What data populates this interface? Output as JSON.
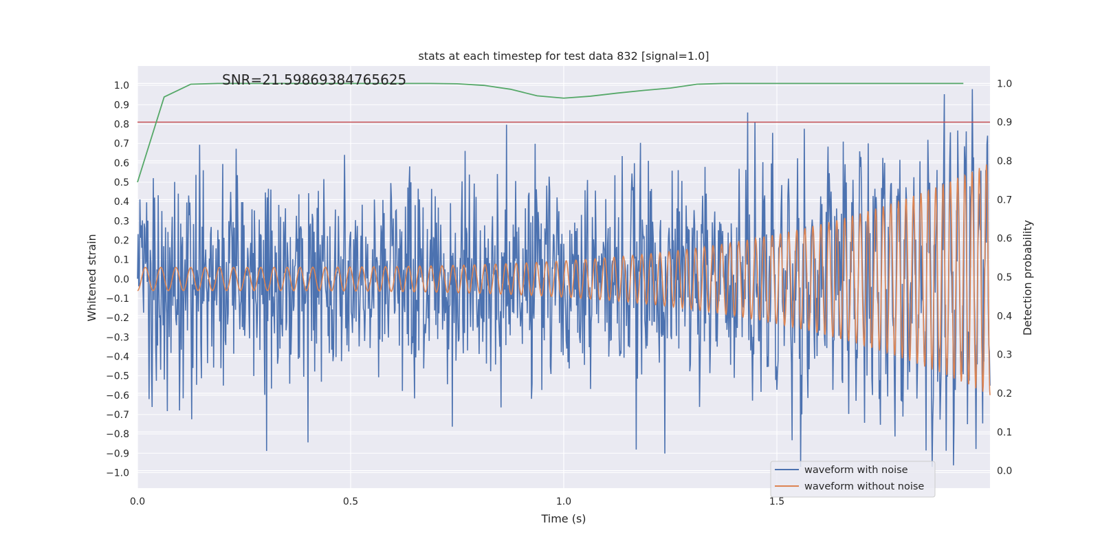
{
  "chart_data": {
    "type": "line",
    "title": "stats at each timestep for test data 832 [signal=1.0]",
    "xlabel": "Time (s)",
    "ylabel": "Whitened strain",
    "y2label": "Detection probability",
    "annotation": "SNR=21.59869384765625",
    "xlim": [
      0.0,
      2.0
    ],
    "ylim": [
      -1.08,
      1.1
    ],
    "y2lim": [
      -0.045,
      1.045
    ],
    "xticks": [
      0.0,
      0.5,
      1.0,
      1.5
    ],
    "xtick_labels": [
      "0.0",
      "0.5",
      "1.0",
      "1.5"
    ],
    "yticks": [
      -1.0,
      -0.9,
      -0.8,
      -0.7,
      -0.6,
      -0.5,
      -0.4,
      -0.3,
      -0.2,
      -0.1,
      0.0,
      0.1,
      0.2,
      0.3,
      0.4,
      0.5,
      0.6,
      0.7,
      0.8,
      0.9,
      1.0
    ],
    "ytick_labels": [
      "−1.0",
      "−0.9",
      "−0.8",
      "−0.7",
      "−0.6",
      "−0.5",
      "−0.4",
      "−0.3",
      "−0.2",
      "−0.1",
      "0.0",
      "0.1",
      "0.2",
      "0.3",
      "0.4",
      "0.5",
      "0.6",
      "0.7",
      "0.8",
      "0.9",
      "1.0"
    ],
    "y2ticks": [
      0.0,
      0.1,
      0.2,
      0.3,
      0.4,
      0.5,
      0.6,
      0.7,
      0.8,
      0.9,
      1.0
    ],
    "y2tick_labels": [
      "0.0",
      "0.1",
      "0.2",
      "0.3",
      "0.4",
      "0.5",
      "0.6",
      "0.7",
      "0.8",
      "0.9",
      "1.0"
    ],
    "grid": true,
    "legend_location": "lower right",
    "threshold": {
      "axis": "right",
      "value": 0.9,
      "color": "#c44e52"
    },
    "series": [
      {
        "name": "waveform with noise",
        "axis": "left",
        "color": "#4c72b0",
        "kind": "noisy-signal",
        "amplitude_range": [
          -0.97,
          0.99
        ],
        "x_range": [
          0.0,
          2.0
        ]
      },
      {
        "name": "waveform without noise",
        "axis": "left",
        "color": "#dd8452",
        "kind": "chirp",
        "x_range": [
          0.0,
          2.0
        ],
        "amplitude_start": 0.06,
        "amplitude_end": 0.6,
        "frequency_start_hz": 27,
        "frequency_end_hz": 60
      },
      {
        "name": "",
        "axis": "right",
        "color": "#55a868",
        "x": [
          0.0,
          0.0625,
          0.125,
          0.1875,
          0.25,
          0.3125,
          0.375,
          0.4375,
          0.5,
          0.5625,
          0.625,
          0.6875,
          0.75,
          0.8125,
          0.875,
          0.9375,
          1.0,
          1.0625,
          1.125,
          1.1875,
          1.25,
          1.3125,
          1.375,
          1.4375,
          1.5,
          1.5625,
          1.625,
          1.6875,
          1.75,
          1.8125,
          1.875,
          1.9375
        ],
        "y": [
          0.745,
          0.965,
          0.998,
          1.0,
          1.0,
          1.0,
          1.0,
          1.0,
          1.0,
          1.0,
          1.0,
          1.0,
          0.999,
          0.995,
          0.985,
          0.968,
          0.962,
          0.967,
          0.975,
          0.982,
          0.988,
          0.998,
          1.0,
          1.0,
          1.0,
          1.0,
          1.0,
          1.0,
          1.0,
          1.0,
          1.0,
          1.0
        ]
      }
    ],
    "legend": [
      {
        "label": "waveform with noise",
        "color": "#4c72b0"
      },
      {
        "label": "waveform without noise",
        "color": "#dd8452"
      }
    ],
    "plot_background": "#eaeaf2",
    "grid_color": "#ffffff"
  }
}
